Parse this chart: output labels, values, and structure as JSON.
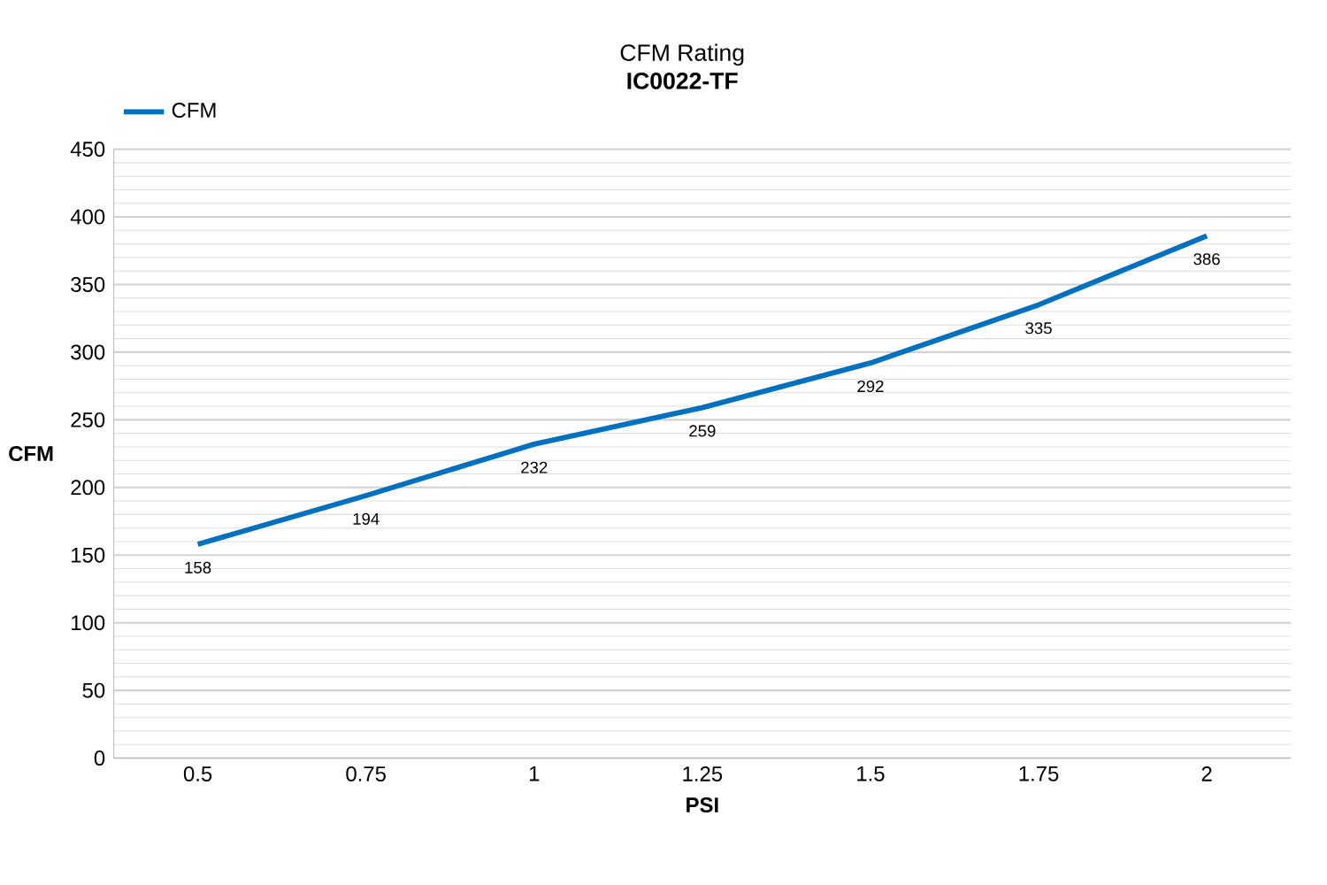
{
  "chart_data": {
    "type": "line",
    "title": "CFM Rating",
    "subtitle": "IC0022-TF",
    "xlabel": "PSI",
    "ylabel": "CFM",
    "categories": [
      "0.5",
      "0.75",
      "1",
      "1.25",
      "1.5",
      "1.75",
      "2"
    ],
    "series": [
      {
        "name": "CFM",
        "color": "#0070c0",
        "values": [
          158,
          194,
          232,
          259,
          292,
          335,
          386
        ]
      }
    ],
    "ylim": [
      0,
      450
    ],
    "yticks": [
      0,
      50,
      100,
      150,
      200,
      250,
      300,
      350,
      400,
      450
    ],
    "grid": "y",
    "legend": "top left",
    "data_labels": true,
    "marker": "none",
    "line_style": "solid"
  }
}
